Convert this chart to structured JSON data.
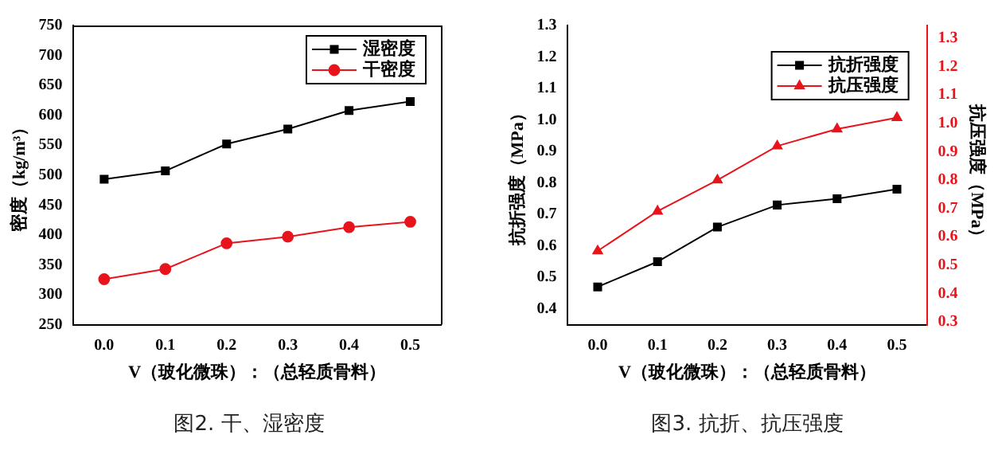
{
  "chart_data": [
    {
      "type": "line",
      "title": "图2. 干、湿密度",
      "xlabel": "V（玻化微珠）：（总轻质骨料）",
      "ylabel": "密度（kg/m³）",
      "x": [
        0,
        0.1,
        0.2,
        0.3,
        0.4,
        0.5
      ],
      "series": [
        {
          "name": "湿密度",
          "color": "#000000",
          "marker": "square",
          "values": [
            493,
            507,
            552,
            577,
            608,
            623
          ]
        },
        {
          "name": "干密度",
          "color": "#e8141c",
          "marker": "circle",
          "values": [
            326,
            343,
            386,
            397,
            413,
            422
          ]
        }
      ],
      "xlim": [
        -0.05,
        0.55
      ],
      "xticks": [
        {
          "value": 0,
          "label": "0.0"
        },
        0.1,
        0.2,
        0.3,
        0.4,
        0.5
      ],
      "ylim": [
        250,
        750
      ],
      "yticks": [
        250,
        300,
        350,
        400,
        450,
        500,
        550,
        600,
        650,
        700,
        750
      ],
      "grid": false,
      "legend": "top right"
    },
    {
      "type": "line",
      "title": "图3. 抗折、抗压强度",
      "xlabel": "V（玻化微珠）：（总轻质骨料）",
      "ylabel": "抗折强度（MPa）",
      "y2label": "抗压强度（MPa）",
      "x": [
        0,
        0.1,
        0.2,
        0.3,
        0.4,
        0.5
      ],
      "series": [
        {
          "name": "抗折强度",
          "color": "#000000",
          "marker": "square",
          "values": [
            0.47,
            0.55,
            0.66,
            0.73,
            0.75,
            0.78
          ]
        },
        {
          "name": "抗压强度",
          "color": "#e8141c",
          "marker": "triangle",
          "axis": "y2",
          "values": [
            0.55,
            0.69,
            0.8,
            0.92,
            0.98,
            1.02
          ]
        }
      ],
      "xlim": [
        -0.05,
        0.55
      ],
      "xticks": [
        {
          "value": 0,
          "label": "0.0"
        },
        0.1,
        0.2,
        0.3,
        0.4,
        0.5
      ],
      "ylim": [
        0.35,
        1.3
      ],
      "yticks": [
        0.4,
        0.5,
        0.6,
        0.7,
        0.8,
        0.9,
        {
          "value": 1,
          "label": "1.0"
        },
        1.1,
        1.2,
        1.3
      ],
      "y2lim": [
        0.29,
        1.345
      ],
      "y2ticks": [
        0.3,
        0.4,
        0.5,
        0.6,
        0.7,
        0.8,
        0.9,
        {
          "value": 1,
          "label": "1.0"
        },
        1.1,
        1.2,
        1.3
      ],
      "grid": false,
      "legend": "top right"
    }
  ]
}
